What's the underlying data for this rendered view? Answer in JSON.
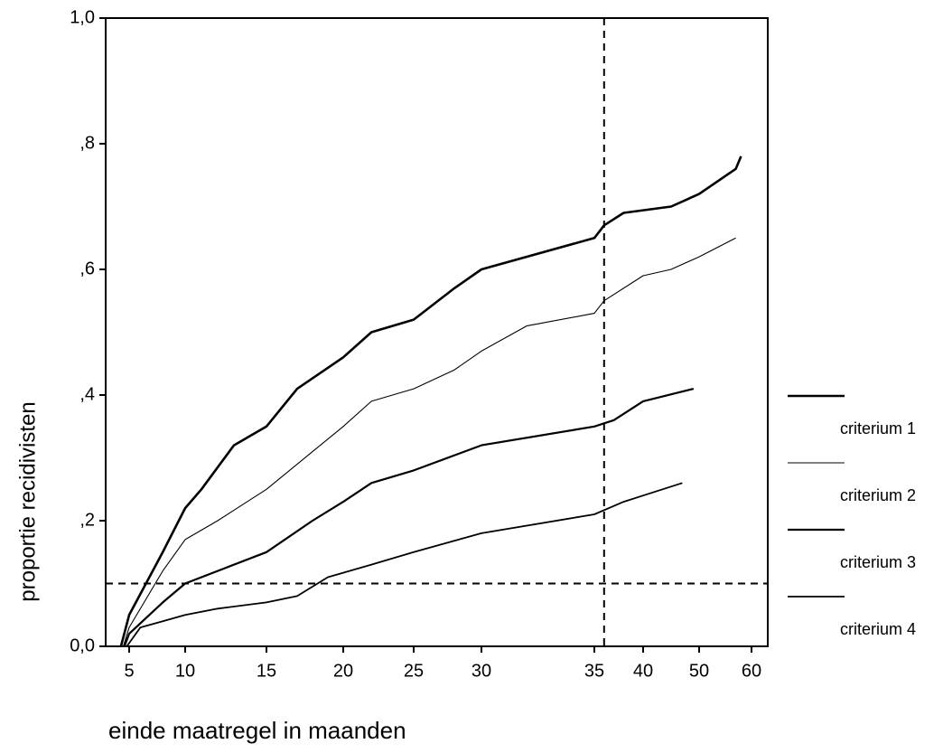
{
  "chart_data": {
    "type": "line",
    "x_label": "einde maatregel in maanden",
    "y_label": "proportie recidivisten",
    "xlim": [
      3,
      63
    ],
    "xticks": [
      5,
      10,
      15,
      20,
      25,
      30,
      35,
      40,
      50,
      60
    ],
    "ylim": [
      0,
      1
    ],
    "yticks": [
      {
        "value": 0,
        "label": "0,0"
      },
      {
        "value": 0.2,
        "label": ",2"
      },
      {
        "value": 0.4,
        "label": ",4"
      },
      {
        "value": 0.6,
        "label": ",6"
      },
      {
        "value": 0.8,
        "label": ",8"
      },
      {
        "value": 1,
        "label": "1,0"
      }
    ],
    "reference_lines": {
      "y": 0.1,
      "x": 36
    },
    "legend": "right",
    "series": [
      {
        "name": "criterium 1",
        "color": "#000000",
        "width": 2.6,
        "x": [
          4.3,
          5,
          8,
          10,
          11,
          13,
          15,
          17,
          20,
          22,
          25,
          28,
          30,
          35,
          36,
          38,
          45,
          50,
          57,
          58
        ],
        "values": [
          0,
          0.05,
          0.15,
          0.22,
          0.25,
          0.32,
          0.35,
          0.41,
          0.46,
          0.5,
          0.52,
          0.57,
          0.6,
          0.65,
          0.67,
          0.69,
          0.7,
          0.72,
          0.76,
          0.78
        ]
      },
      {
        "name": "criterium 2",
        "color": "#000000",
        "width": 1.1,
        "x": [
          4.5,
          5,
          8,
          10,
          12,
          15,
          18,
          20,
          22,
          25,
          28,
          30,
          32,
          35,
          36,
          40,
          45,
          50,
          57
        ],
        "values": [
          0,
          0.03,
          0.12,
          0.17,
          0.2,
          0.25,
          0.31,
          0.35,
          0.39,
          0.41,
          0.44,
          0.47,
          0.51,
          0.53,
          0.55,
          0.59,
          0.6,
          0.62,
          0.65
        ]
      },
      {
        "name": "criterium 3",
        "color": "#000000",
        "width": 2.2,
        "x": [
          4.6,
          5,
          8,
          10,
          12,
          15,
          18,
          20,
          22,
          25,
          30,
          35,
          37,
          40,
          49
        ],
        "values": [
          0,
          0.02,
          0.07,
          0.1,
          0.12,
          0.15,
          0.2,
          0.23,
          0.26,
          0.28,
          0.32,
          0.35,
          0.36,
          0.39,
          0.41
        ]
      },
      {
        "name": "criterium 4",
        "color": "#000000",
        "width": 1.8,
        "x": [
          4.8,
          6,
          8,
          10,
          12,
          15,
          17,
          19,
          22,
          25,
          30,
          35,
          38,
          40,
          47
        ],
        "values": [
          0,
          0.03,
          0.04,
          0.05,
          0.06,
          0.07,
          0.08,
          0.11,
          0.13,
          0.15,
          0.18,
          0.21,
          0.23,
          0.24,
          0.26
        ]
      }
    ]
  }
}
